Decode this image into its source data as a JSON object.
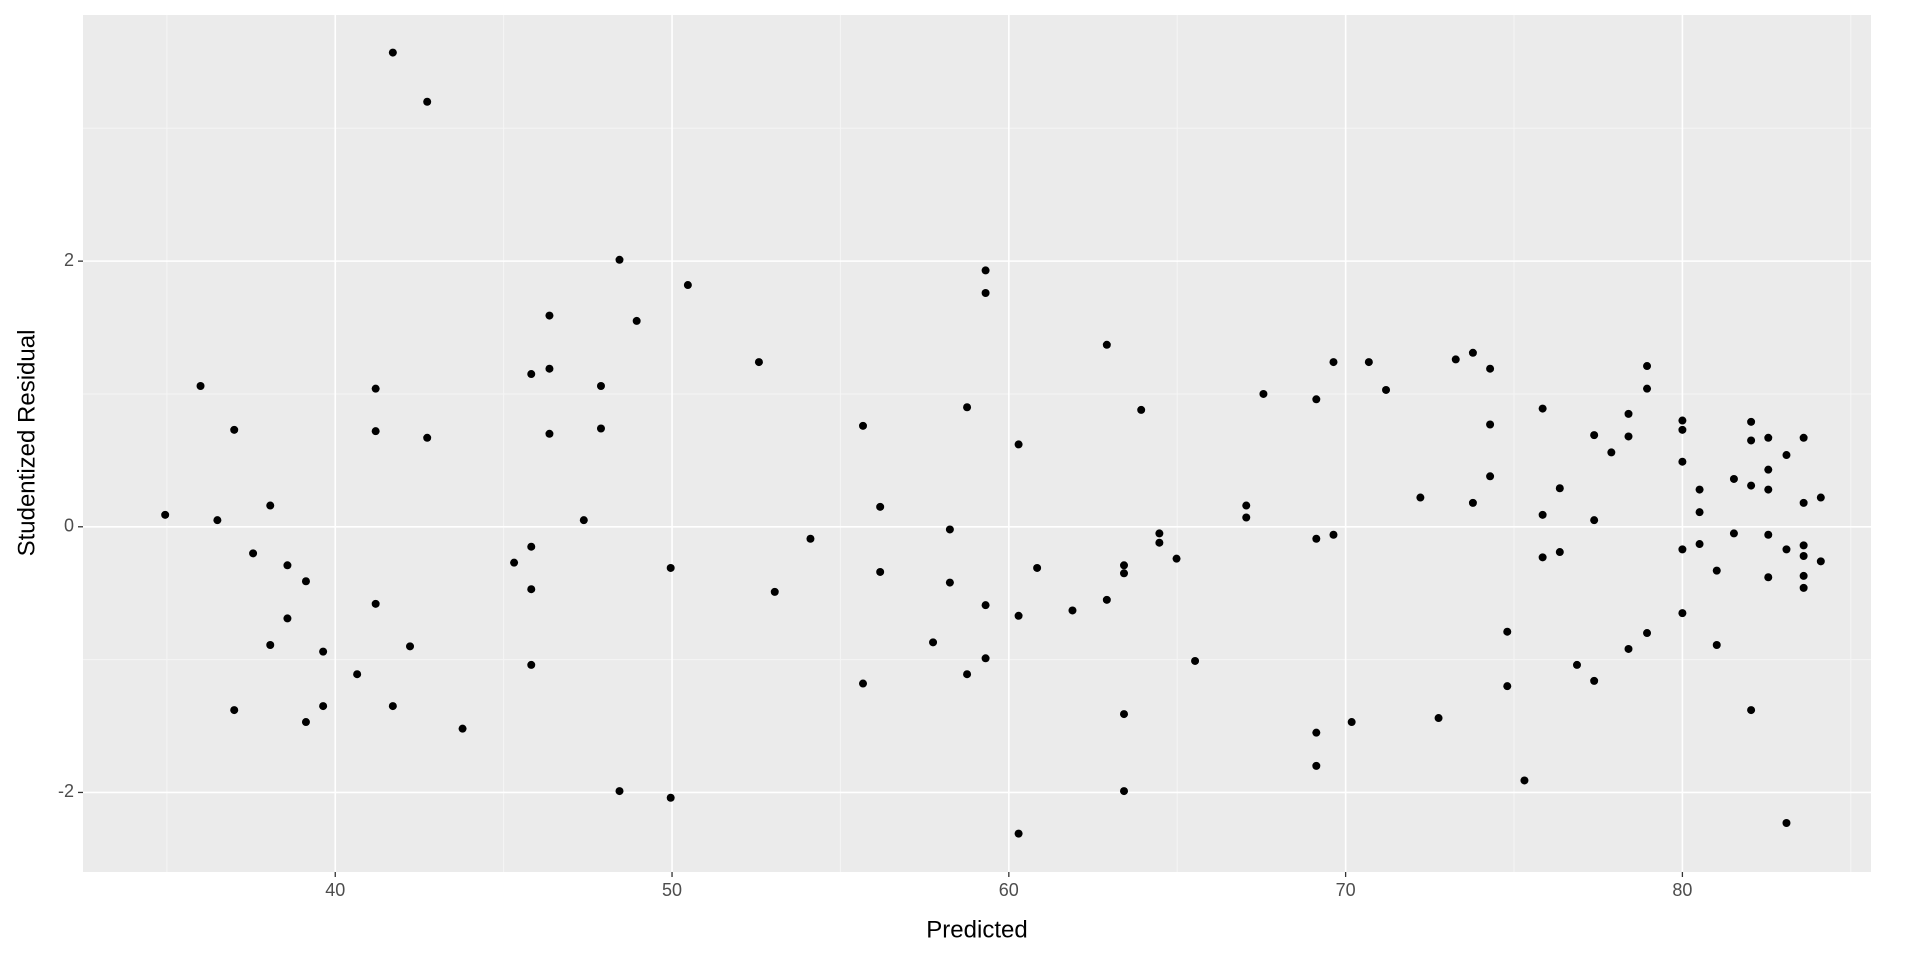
{
  "chart_data": {
    "type": "scatter",
    "x_label": "Predicted",
    "y_label": "Studentized Residual",
    "color": "#000000",
    "grid": true,
    "xlim": [
      32.51,
      85.6
    ],
    "ylim": [
      -2.599,
      3.853
    ],
    "xticks": [
      40,
      50,
      60,
      70,
      80
    ],
    "yticks": [
      -2,
      0,
      2
    ],
    "x": [
      34.95,
      36.0,
      36.5,
      37.0,
      37.0,
      37.56,
      38.07,
      38.07,
      38.58,
      38.58,
      39.13,
      39.13,
      39.64,
      39.64,
      40.65,
      41.2,
      41.2,
      41.2,
      41.71,
      41.71,
      42.22,
      42.73,
      42.73,
      43.78,
      45.31,
      45.82,
      45.82,
      45.82,
      45.82,
      46.36,
      46.36,
      46.36,
      47.38,
      47.89,
      47.89,
      48.44,
      48.44,
      48.95,
      49.96,
      49.96,
      50.47,
      52.58,
      53.05,
      54.11,
      55.67,
      55.67,
      56.18,
      56.18,
      57.75,
      58.25,
      58.25,
      58.76,
      58.76,
      59.31,
      59.31,
      59.31,
      59.31,
      60.29,
      60.29,
      60.29,
      60.84,
      61.89,
      62.91,
      62.91,
      63.42,
      63.42,
      63.42,
      63.42,
      63.93,
      64.47,
      64.47,
      64.98,
      65.53,
      67.05,
      67.05,
      67.56,
      69.13,
      69.13,
      69.13,
      69.13,
      69.64,
      69.64,
      70.18,
      70.69,
      71.2,
      72.22,
      72.76,
      73.27,
      73.78,
      73.78,
      74.29,
      74.29,
      74.29,
      74.8,
      74.8,
      75.31,
      75.85,
      75.85,
      75.85,
      76.36,
      76.36,
      76.87,
      77.38,
      77.38,
      77.38,
      77.89,
      78.4,
      78.4,
      78.4,
      78.95,
      78.95,
      78.95,
      80.0,
      80.0,
      80.0,
      80.0,
      80.0,
      80.51,
      80.51,
      80.51,
      81.02,
      81.02,
      81.53,
      81.53,
      82.04,
      82.04,
      82.04,
      82.04,
      82.55,
      82.55,
      82.55,
      82.55,
      82.55,
      83.09,
      83.09,
      83.09,
      83.6,
      83.6,
      83.6,
      83.6,
      83.6,
      83.6,
      84.11,
      84.11
    ],
    "values": [
      0.09,
      1.06,
      0.05,
      0.73,
      -1.38,
      -0.2,
      0.16,
      -0.89,
      -0.29,
      -0.69,
      -0.41,
      -1.47,
      -0.94,
      -1.35,
      -1.11,
      1.04,
      0.72,
      -0.58,
      3.57,
      -1.35,
      -0.9,
      3.2,
      0.67,
      -1.52,
      -0.27,
      1.15,
      -0.15,
      -0.47,
      -1.04,
      1.59,
      1.19,
      0.7,
      0.05,
      1.06,
      0.74,
      2.01,
      -1.99,
      1.55,
      -0.31,
      -2.04,
      1.82,
      1.24,
      -0.49,
      -0.09,
      0.76,
      -1.18,
      0.15,
      -0.34,
      -0.87,
      -0.02,
      -0.42,
      0.9,
      -1.11,
      1.93,
      1.76,
      -0.59,
      -0.99,
      0.62,
      -0.67,
      -2.31,
      -0.31,
      -0.63,
      1.37,
      -0.55,
      -0.29,
      -0.35,
      -1.41,
      -1.99,
      0.88,
      -0.05,
      -0.12,
      -0.24,
      -1.01,
      0.16,
      0.07,
      1.0,
      0.96,
      -0.09,
      -1.55,
      -1.8,
      1.24,
      -0.06,
      -1.47,
      1.24,
      1.03,
      0.22,
      -1.44,
      1.26,
      1.31,
      0.18,
      1.19,
      0.77,
      0.38,
      -0.79,
      -1.2,
      -1.91,
      0.89,
      0.09,
      -0.23,
      0.29,
      -0.19,
      -1.04,
      0.69,
      0.05,
      -1.16,
      0.56,
      0.85,
      0.68,
      -0.92,
      1.21,
      1.04,
      -0.8,
      0.8,
      0.73,
      0.49,
      -0.17,
      -0.65,
      0.28,
      0.11,
      -0.13,
      -0.33,
      -0.89,
      0.36,
      -0.05,
      0.79,
      0.65,
      0.31,
      -1.38,
      0.67,
      0.43,
      0.28,
      -0.06,
      -0.38,
      0.54,
      -0.17,
      -2.23,
      0.67,
      0.18,
      -0.14,
      -0.22,
      -0.37,
      -0.46,
      0.22,
      -0.26
    ]
  }
}
